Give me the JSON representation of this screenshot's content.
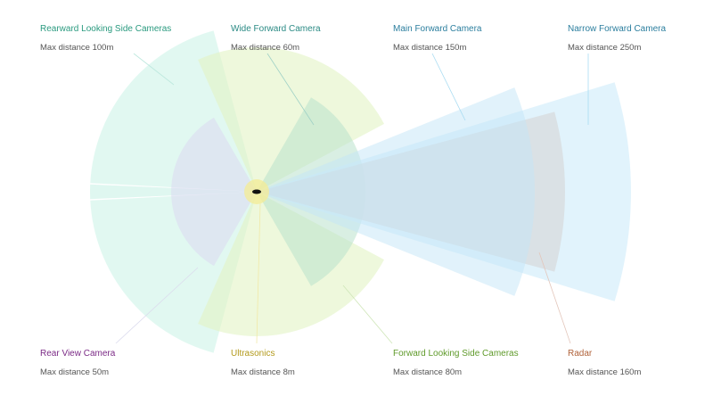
{
  "sensors": [
    {
      "title": "Rearward Looking Side Cameras",
      "subtitle": "Max distance 100m"
    },
    {
      "title": "Wide Forward Camera",
      "subtitle": "Max distance 60m"
    },
    {
      "title": "Main Forward Camera",
      "subtitle": "Max distance 150m"
    },
    {
      "title": "Narrow Forward Camera",
      "subtitle": "Max distance 250m"
    },
    {
      "title": "Rear View Camera",
      "subtitle": "Max distance 50m"
    },
    {
      "title": "Ultrasonics",
      "subtitle": "Max distance 8m"
    },
    {
      "title": "Forward Looking Side Cameras",
      "subtitle": "Max distance 80m"
    },
    {
      "title": "Radar",
      "subtitle": "Max distance 160m"
    }
  ]
}
